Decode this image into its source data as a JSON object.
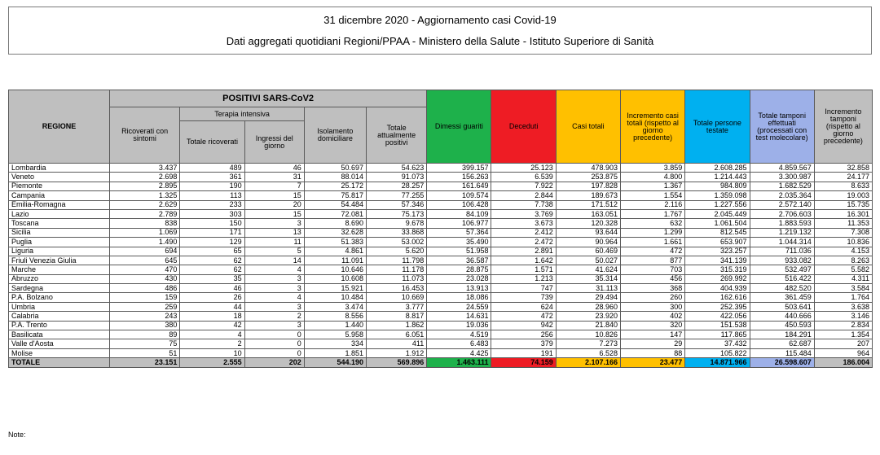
{
  "header": {
    "title": "31 dicembre 2020 - Aggiornamento casi Covid-19",
    "subtitle": "Dati aggregati quotidiani Regioni/PPAA - Ministero della Salute - Istituto Superiore di Sanità"
  },
  "columns": {
    "regione": "REGIONE",
    "positivi": "POSITIVI SARS-CoV2",
    "terapia": "Terapia intensiva",
    "ricoverati": "Ricoverati con sintomi",
    "totale_ricoverati": "Totale ricoverati",
    "ingressi": "Ingressi del giorno",
    "isolamento": "Isolamento domiciliare",
    "totale_positivi": "Totale attualmente positivi",
    "dimessi": "Dimessi guariti",
    "deceduti": "Deceduti",
    "casi_totali": "Casi totali",
    "incremento": "Incremento casi totali (rispetto al giorno precedente)",
    "persone_testate": "Totale persone testate",
    "tamponi": "Totale tamponi effettuati (processati con test molecolare)",
    "incremento_tamponi": "Incremento tamponi (rispetto al giorno precedente)"
  },
  "colors": {
    "header_grey": "#bfbfbf",
    "dimessi_green": "#1eb14b",
    "deceduti_red": "#ee1c24",
    "casi_yellow": "#ffc000",
    "testate_blue": "#00b0f0",
    "tamponi_lavender": "#9db0e8"
  },
  "rows": [
    [
      "Lombardia",
      "3.437",
      "489",
      "46",
      "50.697",
      "54.623",
      "399.157",
      "25.123",
      "478.903",
      "3.859",
      "2.608.285",
      "4.859.567",
      "32.858"
    ],
    [
      "Veneto",
      "2.698",
      "361",
      "31",
      "88.014",
      "91.073",
      "156.263",
      "6.539",
      "253.875",
      "4.800",
      "1.214.443",
      "3.300.987",
      "24.177"
    ],
    [
      "Piemonte",
      "2.895",
      "190",
      "7",
      "25.172",
      "28.257",
      "161.649",
      "7.922",
      "197.828",
      "1.367",
      "984.809",
      "1.682.529",
      "8.633"
    ],
    [
      "Campania",
      "1.325",
      "113",
      "15",
      "75.817",
      "77.255",
      "109.574",
      "2.844",
      "189.673",
      "1.554",
      "1.359.098",
      "2.035.364",
      "19.003"
    ],
    [
      "Emilia-Romagna",
      "2.629",
      "233",
      "20",
      "54.484",
      "57.346",
      "106.428",
      "7.738",
      "171.512",
      "2.116",
      "1.227.556",
      "2.572.140",
      "15.735"
    ],
    [
      "Lazio",
      "2.789",
      "303",
      "15",
      "72.081",
      "75.173",
      "84.109",
      "3.769",
      "163.051",
      "1.767",
      "2.045.449",
      "2.706.603",
      "16.301"
    ],
    [
      "Toscana",
      "838",
      "150",
      "3",
      "8.690",
      "9.678",
      "106.977",
      "3.673",
      "120.328",
      "632",
      "1.061.504",
      "1.883.593",
      "11.353"
    ],
    [
      "Sicilia",
      "1.069",
      "171",
      "13",
      "32.628",
      "33.868",
      "57.364",
      "2.412",
      "93.644",
      "1.299",
      "812.545",
      "1.219.132",
      "7.308"
    ],
    [
      "Puglia",
      "1.490",
      "129",
      "11",
      "51.383",
      "53.002",
      "35.490",
      "2.472",
      "90.964",
      "1.661",
      "653.907",
      "1.044.314",
      "10.836"
    ],
    [
      "Liguria",
      "694",
      "65",
      "5",
      "4.861",
      "5.620",
      "51.958",
      "2.891",
      "60.469",
      "472",
      "323.257",
      "711.036",
      "4.153"
    ],
    [
      "Friuli Venezia Giulia",
      "645",
      "62",
      "14",
      "11.091",
      "11.798",
      "36.587",
      "1.642",
      "50.027",
      "877",
      "341.139",
      "933.082",
      "8.263"
    ],
    [
      "Marche",
      "470",
      "62",
      "4",
      "10.646",
      "11.178",
      "28.875",
      "1.571",
      "41.624",
      "703",
      "315.319",
      "532.497",
      "5.582"
    ],
    [
      "Abruzzo",
      "430",
      "35",
      "3",
      "10.608",
      "11.073",
      "23.028",
      "1.213",
      "35.314",
      "456",
      "269.992",
      "516.422",
      "4.311"
    ],
    [
      "Sardegna",
      "486",
      "46",
      "3",
      "15.921",
      "16.453",
      "13.913",
      "747",
      "31.113",
      "368",
      "404.939",
      "482.520",
      "3.584"
    ],
    [
      "P.A. Bolzano",
      "159",
      "26",
      "4",
      "10.484",
      "10.669",
      "18.086",
      "739",
      "29.494",
      "260",
      "162.616",
      "361.459",
      "1.764"
    ],
    [
      "Umbria",
      "259",
      "44",
      "3",
      "3.474",
      "3.777",
      "24.559",
      "624",
      "28.960",
      "300",
      "252.395",
      "503.641",
      "3.638"
    ],
    [
      "Calabria",
      "243",
      "18",
      "2",
      "8.556",
      "8.817",
      "14.631",
      "472",
      "23.920",
      "402",
      "422.056",
      "440.666",
      "3.146"
    ],
    [
      "P.A. Trento",
      "380",
      "42",
      "3",
      "1.440",
      "1.862",
      "19.036",
      "942",
      "21.840",
      "320",
      "151.538",
      "450.593",
      "2.834"
    ],
    [
      "Basilicata",
      "89",
      "4",
      "0",
      "5.958",
      "6.051",
      "4.519",
      "256",
      "10.826",
      "147",
      "117.865",
      "184.291",
      "1.354"
    ],
    [
      "Valle d'Aosta",
      "75",
      "2",
      "0",
      "334",
      "411",
      "6.483",
      "379",
      "7.273",
      "29",
      "37.432",
      "62.687",
      "207"
    ],
    [
      "Molise",
      "51",
      "10",
      "0",
      "1.851",
      "1.912",
      "4.425",
      "191",
      "6.528",
      "88",
      "105.822",
      "115.484",
      "964"
    ]
  ],
  "total": [
    "TOTALE",
    "23.151",
    "2.555",
    "202",
    "544.190",
    "569.896",
    "1.463.111",
    "74.159",
    "2.107.166",
    "23.477",
    "14.871.966",
    "26.598.607",
    "186.004"
  ],
  "note_label": "Note:"
}
